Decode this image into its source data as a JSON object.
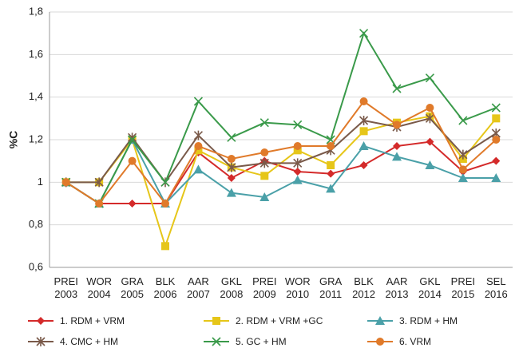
{
  "chart_data": {
    "type": "line",
    "ylabel": "%C",
    "categories": [
      "PREI\n2003",
      "WOR\n2004",
      "GRA\n2005",
      "BLK\n2006",
      "AAR\n2007",
      "GKL\n2008",
      "PREI\n2009",
      "WOR\n2010",
      "GRA\n2011",
      "BLK\n2012",
      "AAR\n2013",
      "GKL\n2014",
      "PREI\n2015",
      "SEL\n2016"
    ],
    "ylim": [
      0.6,
      1.8
    ],
    "yticks": [
      {
        "value": 0.6,
        "label": "0,6"
      },
      {
        "value": 0.8,
        "label": "0,8"
      },
      1,
      {
        "value": 1.2,
        "label": "1,2"
      },
      {
        "value": 1.4,
        "label": "1,4"
      },
      {
        "value": 1.6,
        "label": "1,6"
      },
      {
        "value": 1.8,
        "label": "1,8"
      }
    ],
    "grid": true,
    "legend": "bottom",
    "series": [
      {
        "name": "1. RDM + VRM",
        "color": "#d42a2a",
        "marker": "diamond",
        "values": [
          1,
          0.9,
          0.9,
          0.9,
          1.14,
          1.02,
          1.1,
          1.05,
          1.04,
          1.08,
          1.17,
          1.19,
          1.05,
          1.1
        ]
      },
      {
        "name": "2. RDM + VRM +GC",
        "color": "#e6c619",
        "marker": "square",
        "values": [
          1,
          1,
          1.2,
          0.7,
          1.15,
          1.07,
          1.03,
          1.15,
          1.08,
          1.24,
          1.28,
          1.31,
          1.11,
          1.3
        ]
      },
      {
        "name": "3. RDM + HM",
        "color": "#4aa0a8",
        "marker": "triangle",
        "values": [
          1,
          0.9,
          1.2,
          0.9,
          1.06,
          0.95,
          0.93,
          1.01,
          0.97,
          1.17,
          1.12,
          1.08,
          1.02,
          1.02
        ]
      },
      {
        "name": "4. CMC + HM",
        "color": "#7a5a4a",
        "marker": "star",
        "values": [
          1,
          1,
          1.21,
          1,
          1.22,
          1.07,
          1.09,
          1.09,
          1.15,
          1.29,
          1.26,
          1.3,
          1.13,
          1.23
        ]
      },
      {
        "name": "5. GC + HM",
        "color": "#3a9a4a",
        "marker": "cross",
        "values": [
          1,
          0.9,
          1.2,
          1,
          1.38,
          1.21,
          1.28,
          1.27,
          1.2,
          1.7,
          1.44,
          1.49,
          1.29,
          1.35
        ]
      },
      {
        "name": "6. VRM",
        "color": "#e07a2a",
        "marker": "circle",
        "values": [
          1,
          0.9,
          1.1,
          0.9,
          1.17,
          1.11,
          1.14,
          1.17,
          1.17,
          1.38,
          1.27,
          1.35,
          1.06,
          1.2
        ]
      }
    ]
  }
}
